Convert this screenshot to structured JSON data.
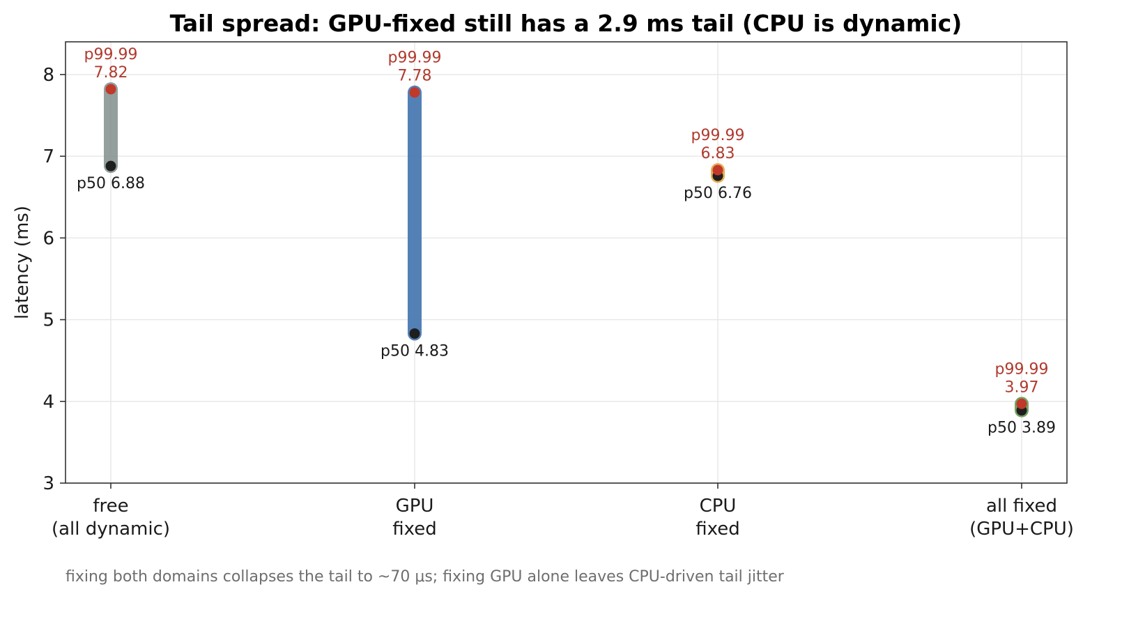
{
  "colors": {
    "p9999_marker": "#c0392b",
    "p9999_text": "#b03a2e",
    "p50_marker": "#1f1f1f",
    "grid": "#e6e6e6",
    "axis": "#333333"
  },
  "chart_data": {
    "type": "range-dot",
    "title": "Tail spread: GPU-fixed still has a 2.9 ms tail (CPU is dynamic)",
    "ylabel": "latency (ms)",
    "xlabel": "",
    "ylim": [
      3,
      8.4
    ],
    "yticks": [
      3,
      4,
      5,
      6,
      7,
      8
    ],
    "grid": true,
    "categories": [
      {
        "line1": "free",
        "line2": "(all dynamic)",
        "p50": 6.88,
        "p9999": 7.82,
        "p50_label": "p50 6.88",
        "p9999_tag": "p99.99",
        "p9999_value": "7.82",
        "color": "#8e9b99"
      },
      {
        "line1": "GPU",
        "line2": "fixed",
        "p50": 4.83,
        "p9999": 7.78,
        "p50_label": "p50 4.83",
        "p9999_tag": "p99.99",
        "p9999_value": "7.78",
        "color": "#4a7bb3"
      },
      {
        "line1": "CPU",
        "line2": "fixed",
        "p50": 6.76,
        "p9999": 6.83,
        "p50_label": "p50 6.76",
        "p9999_tag": "p99.99",
        "p9999_value": "6.83",
        "color": "#e8a84a"
      },
      {
        "line1": "all fixed",
        "line2": "(GPU+CPU)",
        "p50": 3.89,
        "p9999": 3.97,
        "p50_label": "p50 3.89",
        "p9999_tag": "p99.99",
        "p9999_value": "3.97",
        "color": "#6ea05a"
      }
    ],
    "caption": "fixing both domains collapses the tail to ~70 μs; fixing GPU alone leaves CPU-driven tail jitter"
  }
}
